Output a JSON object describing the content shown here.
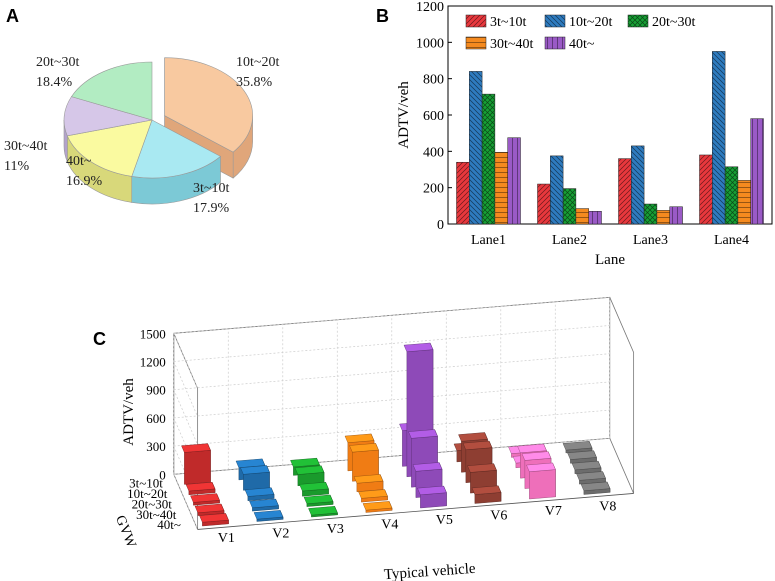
{
  "chart_data": [
    {
      "panel": "A",
      "type": "pie",
      "slices": [
        {
          "name": "10t~20t",
          "value": 35.8,
          "label": "35.8%",
          "color": "#f8c9a0",
          "side": "#e0a67a"
        },
        {
          "name": "3t~10t",
          "value": 17.9,
          "label": "17.9%",
          "color": "#a9e9f2",
          "side": "#7cc9d6"
        },
        {
          "name": "40t~",
          "value": 16.9,
          "label": "16.9%",
          "color": "#fafaa0",
          "side": "#d8d87a"
        },
        {
          "name": "30t~40t",
          "value": 11,
          "label": "11%",
          "color": "#d6c7e8",
          "side": "#b3a2cc"
        },
        {
          "name": "20t~30t",
          "value": 18.4,
          "label": "18.4%",
          "color": "#b2ecc2",
          "side": "#86cc9a"
        }
      ]
    },
    {
      "panel": "B",
      "type": "bar",
      "categories": [
        "Lane1",
        "Lane2",
        "Lane3",
        "Lane4"
      ],
      "series": [
        {
          "name": "3t~10t",
          "values": [
            340,
            220,
            360,
            380
          ],
          "color": "#e8383d",
          "pattern": "diag-right"
        },
        {
          "name": "10t~20t",
          "values": [
            840,
            375,
            430,
            950
          ],
          "color": "#2e7bbf",
          "pattern": "diag-left"
        },
        {
          "name": "20t~30t",
          "values": [
            715,
            195,
            110,
            315
          ],
          "color": "#17a035",
          "pattern": "cross"
        },
        {
          "name": "30t~40t",
          "values": [
            395,
            85,
            75,
            240
          ],
          "color": "#f58a1f",
          "pattern": "horizontal"
        },
        {
          "name": "40t~",
          "values": [
            475,
            70,
            95,
            580
          ],
          "color": "#9a5ac6",
          "pattern": "vertical"
        }
      ],
      "xlabel": "Lane",
      "ylabel": "ADTV/veh",
      "ylim": [
        0,
        1200
      ],
      "yticks": [
        "0",
        "200",
        "400",
        "600",
        "800",
        "1000",
        "1200"
      ]
    },
    {
      "panel": "C",
      "type": "bar3d",
      "categories": [
        "V1",
        "V2",
        "V3",
        "V4",
        "V5",
        "V6",
        "V7",
        "V8"
      ],
      "groups": [
        "3t~10t",
        "10t~20t",
        "20t~30t",
        "30t~40t",
        "40t~"
      ],
      "values": [
        [
          340,
          40,
          30,
          30,
          40
        ],
        [
          130,
          170,
          45,
          35,
          25
        ],
        [
          90,
          120,
          55,
          30,
          20
        ],
        [
          300,
          310,
          90,
          40,
          25
        ],
        [
          380,
          1330,
          520,
          280,
          140
        ],
        [
          120,
          330,
          350,
          220,
          95
        ],
        [
          40,
          50,
          270,
          300,
          290
        ],
        [
          30,
          40,
          40,
          40,
          40
        ]
      ],
      "colors": [
        "#c02a2a",
        "#1f6aa8",
        "#1a9a2c",
        "#f07c14",
        "#8e4ab8",
        "#8e3e32",
        "#ee6fba",
        "#6c6c6c"
      ],
      "xlabel": "Typical vehicle",
      "ylabel": "ADTV/veh",
      "zlabel": "GVW",
      "zlim": [
        0,
        1500
      ],
      "zticks": [
        "0",
        "300",
        "600",
        "900",
        "1200",
        "1500"
      ]
    }
  ],
  "panels": {
    "a": "A",
    "b": "B",
    "c": "C"
  }
}
